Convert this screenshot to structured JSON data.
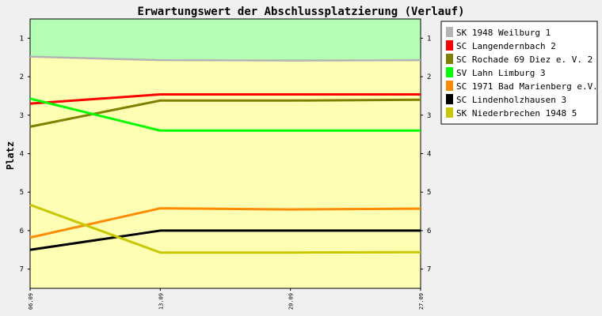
{
  "chart_data": {
    "type": "line",
    "title": "Erwartungswert der Abschlussplatzierung (Verlauf)",
    "ylabel": "Platz",
    "xlabel": "",
    "x_ticks": [
      "06.09",
      "13.09",
      "20.09",
      "27.09"
    ],
    "x_range": [
      6,
      27
    ],
    "ylim": [
      0.5,
      7.5
    ],
    "y_inverted": true,
    "y_ticks": [
      1,
      2,
      3,
      4,
      5,
      6,
      7
    ],
    "zones": [
      {
        "from": 0.5,
        "to_series": "SK 1948 Weilburg 1",
        "color": "#b3ffb3"
      },
      {
        "from_series": "SK 1948 Weilburg 1",
        "to": 7.5,
        "color": "#ffffb3"
      }
    ],
    "legend_position": "right",
    "series": [
      {
        "name": "SK 1948 Weilburg 1",
        "color": "#b4b4b4",
        "x": [
          6,
          13,
          20,
          27
        ],
        "values": [
          1.48,
          1.57,
          1.58,
          1.57
        ]
      },
      {
        "name": "SC Langendernbach 2",
        "color": "#ff0000",
        "x": [
          6,
          13,
          20,
          27
        ],
        "values": [
          2.7,
          2.46,
          2.46,
          2.46
        ]
      },
      {
        "name": "SC Rochade 69 Diez e. V. 2",
        "color": "#808000",
        "x": [
          6,
          13,
          20,
          27
        ],
        "values": [
          3.3,
          2.62,
          2.62,
          2.6
        ]
      },
      {
        "name": "SV Lahn Limburg 3",
        "color": "#00ff00",
        "x": [
          6,
          13,
          20,
          27
        ],
        "values": [
          2.57,
          3.4,
          3.4,
          3.4
        ]
      },
      {
        "name": "SC 1971 Bad Marienberg e.V. 2",
        "color": "#ff8c00",
        "x": [
          6,
          13,
          20,
          27
        ],
        "values": [
          6.18,
          5.42,
          5.45,
          5.43
        ]
      },
      {
        "name": "SC Lindenholzhausen 3",
        "color": "#000000",
        "x": [
          6,
          13,
          20,
          27
        ],
        "values": [
          6.5,
          6.0,
          6.0,
          6.0
        ]
      },
      {
        "name": "SK Niederbrechen 1948 5",
        "color": "#c8c800",
        "x": [
          6,
          13,
          20,
          27
        ],
        "values": [
          5.33,
          6.57,
          6.57,
          6.56
        ]
      }
    ]
  }
}
